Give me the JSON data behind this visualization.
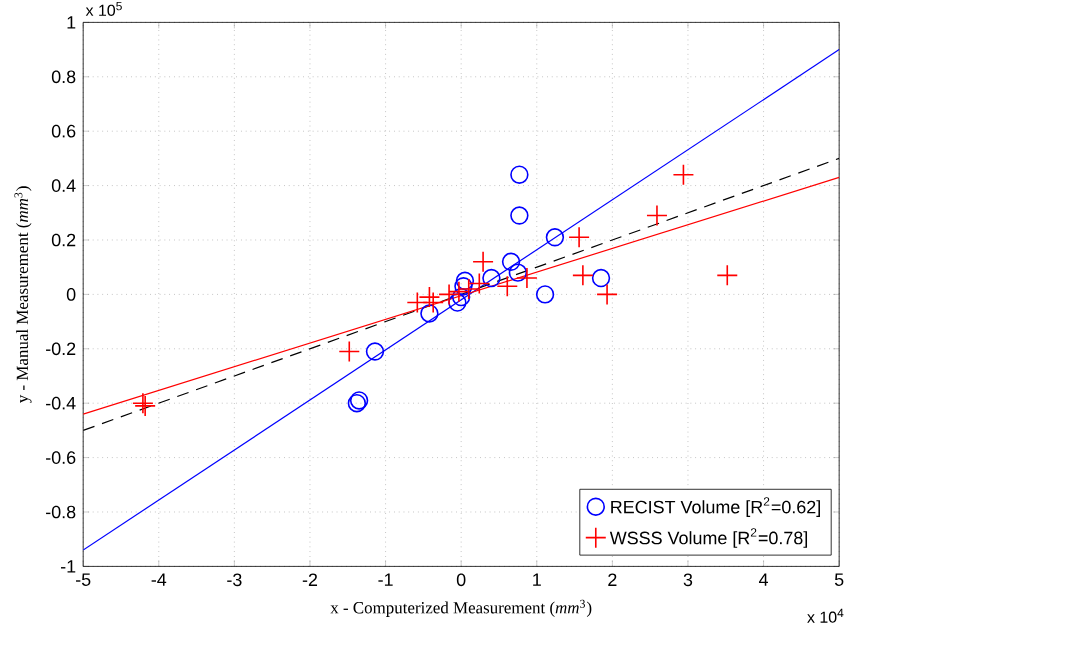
{
  "chart_data": {
    "type": "scatter",
    "xlabel": "x - Computerized Measurement (*mm*$^{3}$)",
    "ylabel": "y - Manual Measurement (*mm*$^{3}$)",
    "annotations": [
      "x 10$^{5}$",
      "x 10$^{4}$"
    ],
    "xlim": [
      -5,
      5
    ],
    "xticks": [
      -5,
      -4,
      -3,
      -2,
      -1,
      0,
      1,
      2,
      3,
      4,
      5
    ],
    "ylim": [
      -1,
      1
    ],
    "yticks": [
      -1,
      -0.8,
      -0.6,
      -0.4,
      -0.2,
      0,
      0.2,
      0.4,
      0.6,
      0.8,
      1
    ],
    "grid": true,
    "legend": "bottom right",
    "series": [
      {
        "name": "RECIST Volume [R$^{2}$=0.62]",
        "color": "#0000ff",
        "marker": "circle",
        "x": [
          0.77,
          0.77,
          1.24,
          0.66,
          0.75,
          1.11,
          1.85,
          0.4,
          0.03,
          0.05,
          0.0,
          -0.05,
          -0.42,
          -1.14,
          -1.38,
          -1.35
        ],
        "values": [
          0.44,
          0.29,
          0.21,
          0.12,
          0.08,
          0.0,
          0.06,
          0.06,
          0.03,
          0.05,
          -0.01,
          -0.03,
          -0.07,
          -0.21,
          -0.4,
          -0.39
        ]
      },
      {
        "name": "WSSS Volume [R$^{2}$=0.78]",
        "color": "#ff0000",
        "marker": "cross",
        "x": [
          -4.21,
          -4.18,
          -1.48,
          -0.58,
          -0.37,
          -0.42,
          -0.16,
          -0.03,
          0.1,
          0.24,
          0.29,
          0.61,
          0.87,
          1.56,
          1.61,
          1.93,
          2.59,
          2.94,
          3.52
        ],
        "values": [
          -0.4,
          -0.41,
          -0.21,
          -0.03,
          -0.03,
          -0.01,
          0.0,
          0.01,
          0.02,
          0.04,
          0.12,
          0.03,
          0.06,
          0.21,
          0.07,
          0.0,
          0.29,
          0.44,
          0.07
        ]
      },
      {
        "type": "line",
        "color": "#0000ff",
        "line_style": "solid",
        "x": [
          -5,
          5
        ],
        "values": [
          -0.94,
          0.9
        ]
      },
      {
        "type": "line",
        "color": "#000000",
        "line_style": "dashed",
        "x": [
          -5,
          5
        ],
        "values": [
          -0.5,
          0.5
        ]
      },
      {
        "type": "line",
        "color": "#ff0000",
        "line_style": "solid",
        "x": [
          -5,
          5
        ],
        "values": [
          -0.44,
          0.43
        ]
      }
    ]
  }
}
